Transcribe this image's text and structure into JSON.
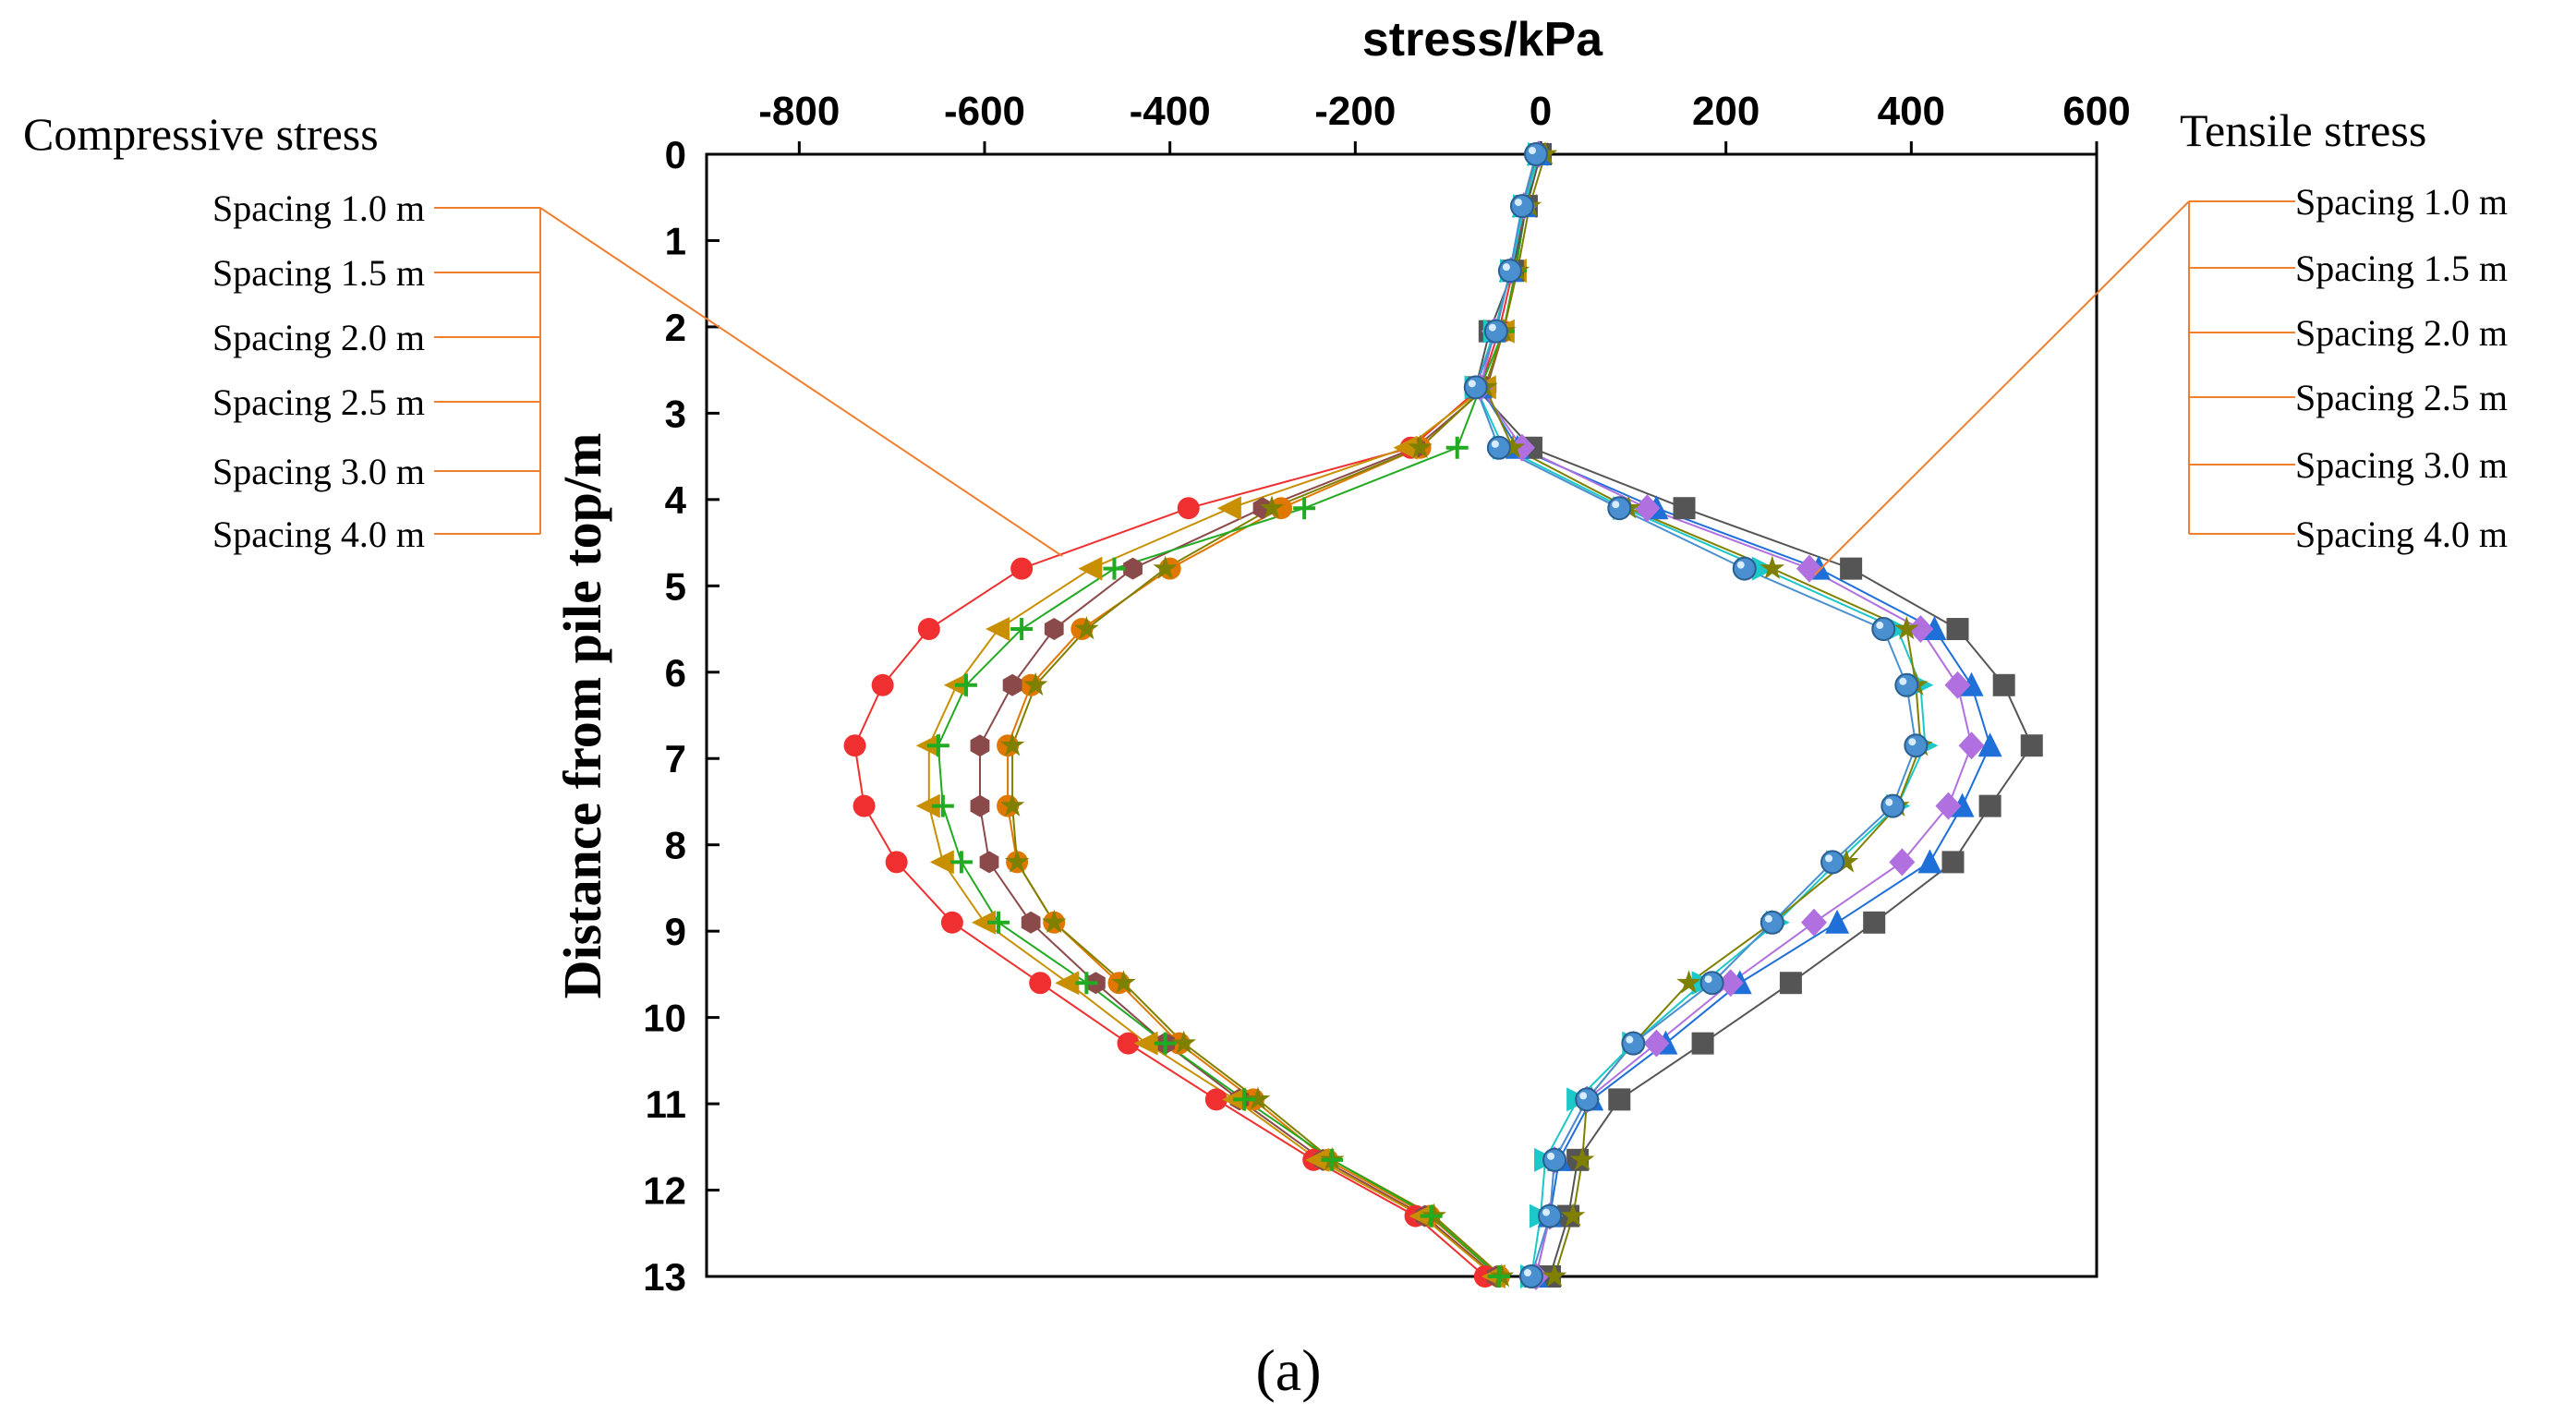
{
  "chart_data": {
    "type": "line",
    "title": "stress/kPa",
    "ylabel": "Distance from pile top/m",
    "xlim": [
      -900,
      600
    ],
    "ylim": [
      13,
      0
    ],
    "x_ticks": [
      "-800",
      "-600",
      "-400",
      "-200",
      "0",
      "200",
      "400",
      "600"
    ],
    "x_tick_values": [
      -800,
      -600,
      -400,
      -200,
      0,
      200,
      400,
      600
    ],
    "y_ticks": [
      "0",
      "1",
      "2",
      "3",
      "4",
      "5",
      "6",
      "7",
      "8",
      "9",
      "10",
      "11",
      "12",
      "13"
    ],
    "y_tick_values": [
      0,
      1,
      2,
      3,
      4,
      5,
      6,
      7,
      8,
      9,
      10,
      11,
      12,
      13
    ],
    "caption": "(a)",
    "depths": [
      0,
      0.6,
      1.35,
      2.05,
      2.7,
      3.4,
      4.1,
      4.8,
      5.5,
      6.15,
      6.85,
      7.55,
      8.2,
      8.9,
      9.6,
      10.3,
      10.95,
      11.65,
      12.3,
      13.0
    ],
    "compressive": {
      "label": "Compressive stress",
      "legend_items": [
        "Spacing 1.0 m",
        "Spacing 1.5 m",
        "Spacing 2.0 m",
        "Spacing 2.5 m",
        "Spacing 3.0 m",
        "Spacing 4.0 m"
      ],
      "series": [
        {
          "color": "#f03030",
          "marker": "circle",
          "values": [
            -5,
            -18,
            -30,
            -45,
            -65,
            -140,
            -380,
            -560,
            -660,
            -710,
            -740,
            -730,
            -695,
            -635,
            -540,
            -445,
            -350,
            -245,
            -135,
            -60
          ]
        },
        {
          "color": "#e07800",
          "marker": "circle",
          "values": [
            -4,
            -16,
            -27,
            -40,
            -60,
            -130,
            -280,
            -400,
            -495,
            -550,
            -575,
            -575,
            -565,
            -525,
            -455,
            -390,
            -310,
            -230,
            -120,
            -45
          ]
        },
        {
          "color": "#8b4a4a",
          "marker": "hexagon",
          "values": [
            -4,
            -16,
            -27,
            -40,
            -58,
            -135,
            -300,
            -440,
            -525,
            -570,
            -605,
            -605,
            -595,
            -550,
            -480,
            -405,
            -325,
            -235,
            -125,
            -48
          ]
        },
        {
          "color": "#c89000",
          "marker": "triangle-left",
          "values": [
            -4,
            -16,
            -27,
            -40,
            -60,
            -145,
            -335,
            -485,
            -585,
            -630,
            -660,
            -660,
            -645,
            -600,
            -510,
            -425,
            -330,
            -240,
            -128,
            -50
          ]
        },
        {
          "color": "#808000",
          "marker": "star",
          "values": [
            -4,
            -16,
            -27,
            -40,
            -60,
            -130,
            -290,
            -405,
            -490,
            -545,
            -570,
            -570,
            -565,
            -525,
            -450,
            -385,
            -305,
            -225,
            -115,
            -42
          ]
        },
        {
          "color": "#22aa22",
          "marker": "plus",
          "values": [
            -4,
            -16,
            -27,
            -40,
            -65,
            -90,
            -255,
            -460,
            -560,
            -620,
            -650,
            -645,
            -625,
            -585,
            -490,
            -405,
            -320,
            -225,
            -118,
            -45
          ]
        }
      ]
    },
    "tensile": {
      "label": "Tensile stress",
      "legend_items": [
        "Spacing 1.0 m",
        "Spacing 1.5 m",
        "Spacing 2.0 m",
        "Spacing 2.5 m",
        "Spacing 3.0 m",
        "Spacing 4.0 m"
      ],
      "series": [
        {
          "color": "#555555",
          "marker": "square",
          "values": [
            0,
            -15,
            -30,
            -55,
            -70,
            -10,
            155,
            335,
            450,
            500,
            530,
            485,
            445,
            360,
            270,
            175,
            85,
            40,
            30,
            10
          ]
        },
        {
          "color": "#1e6fd8",
          "marker": "triangle-up",
          "values": [
            -2,
            -18,
            -32,
            -50,
            -65,
            -25,
            125,
            300,
            425,
            465,
            485,
            455,
            420,
            320,
            215,
            135,
            55,
            20,
            10,
            -5
          ]
        },
        {
          "color": "#b070e0",
          "marker": "diamond",
          "values": [
            -2,
            -18,
            -32,
            -50,
            -65,
            -20,
            115,
            290,
            410,
            450,
            465,
            440,
            390,
            295,
            205,
            125,
            50,
            15,
            10,
            -5
          ]
        },
        {
          "color": "#1cc8c8",
          "marker": "triangle-right",
          "values": [
            -2,
            -18,
            -32,
            -50,
            -70,
            -40,
            90,
            240,
            385,
            410,
            415,
            385,
            320,
            255,
            175,
            100,
            40,
            5,
            0,
            -10
          ]
        },
        {
          "color": "#808000",
          "marker": "star",
          "values": [
            5,
            -12,
            -25,
            -40,
            -60,
            -30,
            95,
            250,
            395,
            405,
            410,
            385,
            330,
            250,
            160,
            100,
            50,
            45,
            35,
            15
          ]
        },
        {
          "color": "#4a90d0",
          "marker": "sphere",
          "values": [
            -5,
            -20,
            -33,
            -48,
            -70,
            -45,
            85,
            220,
            370,
            395,
            405,
            380,
            315,
            250,
            185,
            100,
            50,
            15,
            10,
            -10
          ]
        }
      ]
    }
  }
}
